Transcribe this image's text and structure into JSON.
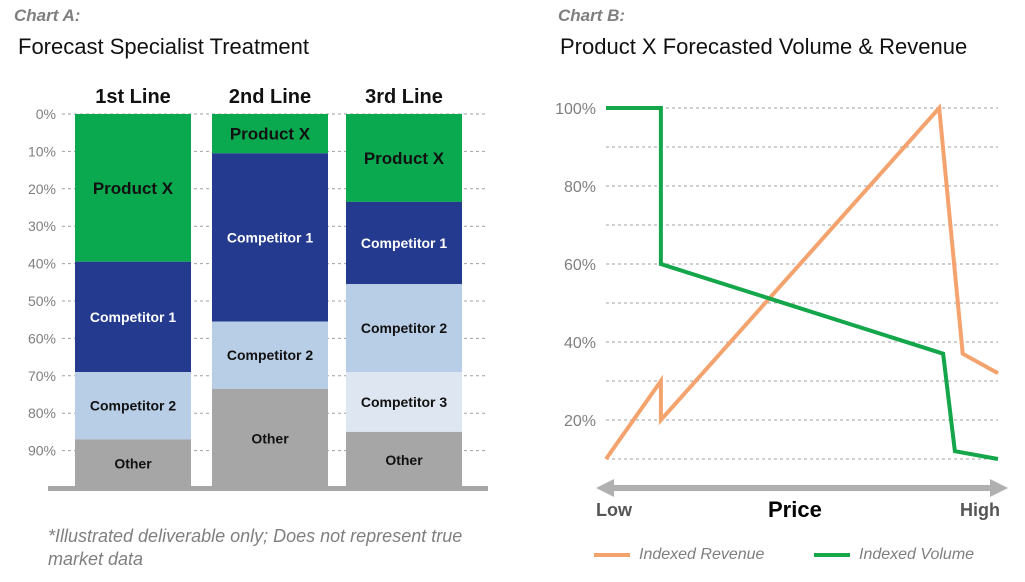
{
  "chartA": {
    "tag": "Chart A:",
    "title": "Forecast Specialist Treatment",
    "disclaimer": "*Illustrated deliverable only; Does not represent true market data"
  },
  "chartB": {
    "tag": "Chart B:",
    "title": "Product X Forecasted Volume & Revenue",
    "price_label": "Price",
    "low_label": "Low",
    "high_label": "High"
  },
  "colors": {
    "product_x": "#0aa84f",
    "competitor_1": "#233a8e",
    "competitor_2": "#b8cde6",
    "competitor_3": "#dde6f1",
    "other": "#a6a6a6",
    "revenue": "#f4a36e",
    "volume": "#13a64a",
    "grid": "#a0a0a0",
    "axis": "#b0b0b0"
  },
  "chart_data": [
    {
      "type": "bar",
      "stacked": true,
      "orientation": "vertical-top-down",
      "title": "Forecast Specialist Treatment",
      "categories": [
        "1st Line",
        "2nd Line",
        "3rd Line"
      ],
      "yticks": [
        "0%",
        "10%",
        "20%",
        "30%",
        "40%",
        "50%",
        "60%",
        "70%",
        "80%",
        "90%"
      ],
      "ylim": [
        0,
        100
      ],
      "grid": true,
      "columns": [
        {
          "category": "1st Line",
          "segments": [
            {
              "name": "Product X",
              "value": 39.5,
              "color": "#0aa84f",
              "label_color": "#111",
              "bold": true,
              "size": 17
            },
            {
              "name": "Competitor 1",
              "value": 29.5,
              "color": "#233a8e",
              "label_color": "#ffffff",
              "bold": true,
              "size": 14
            },
            {
              "name": "Competitor 2",
              "value": 18,
              "color": "#b8cde6",
              "label_color": "#111",
              "bold": true,
              "size": 14
            },
            {
              "name": "Other",
              "value": 13,
              "color": "#a6a6a6",
              "label_color": "#111",
              "bold": true,
              "size": 14
            }
          ]
        },
        {
          "category": "2nd Line",
          "segments": [
            {
              "name": "Product X",
              "value": 10.5,
              "color": "#0aa84f",
              "label_color": "#111",
              "bold": true,
              "size": 17
            },
            {
              "name": "Competitor 1",
              "value": 45,
              "color": "#233a8e",
              "label_color": "#ffffff",
              "bold": true,
              "size": 14
            },
            {
              "name": "Competitor 2",
              "value": 18,
              "color": "#b8cde6",
              "label_color": "#111",
              "bold": true,
              "size": 14
            },
            {
              "name": "Other",
              "value": 26.5,
              "color": "#a6a6a6",
              "label_color": "#111",
              "bold": true,
              "size": 14
            }
          ]
        },
        {
          "category": "3rd Line",
          "segments": [
            {
              "name": "Product X",
              "value": 23.5,
              "color": "#0aa84f",
              "label_color": "#111",
              "bold": true,
              "size": 17
            },
            {
              "name": "Competitor 1",
              "value": 22,
              "color": "#233a8e",
              "label_color": "#ffffff",
              "bold": true,
              "size": 14
            },
            {
              "name": "Competitor 2",
              "value": 23.5,
              "color": "#b8cde6",
              "label_color": "#111",
              "bold": true,
              "size": 14
            },
            {
              "name": "Competitor 3",
              "value": 16,
              "color": "#dde6f1",
              "label_color": "#111",
              "bold": true,
              "size": 14
            },
            {
              "name": "Other",
              "value": 15,
              "color": "#a6a6a6",
              "label_color": "#111",
              "bold": true,
              "size": 14
            }
          ]
        }
      ]
    },
    {
      "type": "line",
      "title": "Product X Forecasted Volume & Revenue",
      "xlabel": "Price",
      "xlim": [
        0,
        100
      ],
      "ylim": [
        0,
        100
      ],
      "yticks": [
        "20%",
        "40%",
        "60%",
        "80%",
        "100%"
      ],
      "grid": true,
      "legend": "bottom",
      "series": [
        {
          "name": "Indexed Revenue",
          "color": "#f4a36e",
          "points": [
            [
              0,
              10
            ],
            [
              14,
              30
            ],
            [
              14,
              20
            ],
            [
              85,
              100
            ],
            [
              91,
              37
            ],
            [
              100,
              32
            ]
          ]
        },
        {
          "name": "Indexed Volume",
          "color": "#13a64a",
          "points": [
            [
              0,
              100
            ],
            [
              14,
              100
            ],
            [
              14,
              60
            ],
            [
              86,
              37
            ],
            [
              89,
              12
            ],
            [
              100,
              10
            ]
          ]
        }
      ]
    }
  ]
}
